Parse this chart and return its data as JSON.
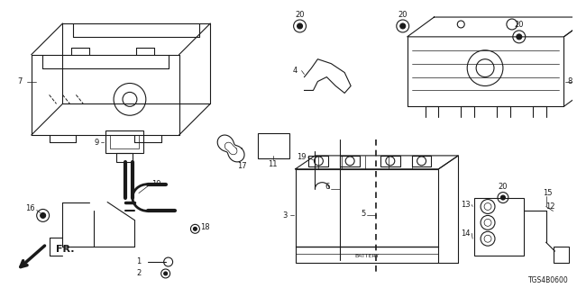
{
  "background_color": "#ffffff",
  "line_color": "#1a1a1a",
  "fig_width": 6.4,
  "fig_height": 3.2,
  "dpi": 100,
  "diagram_code_ref": "TGS4B0600"
}
